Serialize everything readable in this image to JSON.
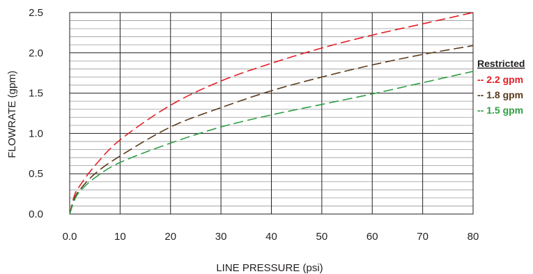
{
  "chart_data": {
    "type": "line",
    "xlabel": "LINE PRESSURE (psi)",
    "ylabel": "FLOWRATE (gpm)",
    "xlim": [
      0,
      80
    ],
    "ylim": [
      0,
      2.5
    ],
    "x_ticks": [
      "0.0",
      "10",
      "20",
      "30",
      "40",
      "50",
      "60",
      "70",
      "80"
    ],
    "y_ticks": [
      "0.0",
      "0.5",
      "1.0",
      "1.5",
      "2.0",
      "2.5"
    ],
    "grid": true,
    "legend_title": "Restricted",
    "legend_position": "right",
    "series": [
      {
        "name": "2.2 gpm",
        "color": "#e31e24",
        "style": "dashed",
        "x": [
          0,
          1,
          2,
          5,
          10,
          20,
          30,
          40,
          50,
          60,
          70,
          80
        ],
        "y": [
          0,
          0.24,
          0.35,
          0.6,
          0.92,
          1.35,
          1.65,
          1.87,
          2.06,
          2.22,
          2.36,
          2.5
        ]
      },
      {
        "name": "1.8 gpm",
        "color": "#5b3a1a",
        "style": "dashed",
        "x": [
          0,
          1,
          2,
          5,
          10,
          20,
          30,
          40,
          50,
          60,
          70,
          80
        ],
        "y": [
          0,
          0.2,
          0.3,
          0.5,
          0.72,
          1.08,
          1.32,
          1.53,
          1.7,
          1.85,
          1.98,
          2.09
        ]
      },
      {
        "name": "1.5 gpm",
        "color": "#2e9e44",
        "style": "dashed",
        "x": [
          0,
          1,
          2,
          5,
          10,
          20,
          30,
          40,
          50,
          60,
          70,
          80
        ],
        "y": [
          0,
          0.18,
          0.28,
          0.45,
          0.64,
          0.88,
          1.08,
          1.23,
          1.36,
          1.49,
          1.63,
          1.77
        ]
      }
    ]
  }
}
